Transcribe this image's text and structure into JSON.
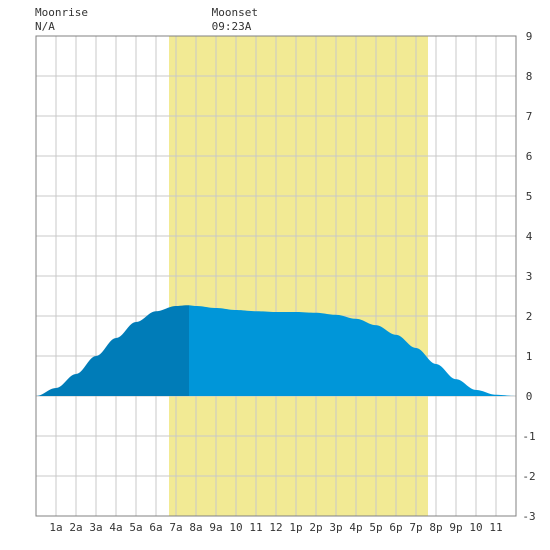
{
  "moonrise": {
    "label": "Moonrise",
    "value": "N/A"
  },
  "moonset": {
    "label": "Moonset",
    "value": "09:23A",
    "hour": 9.383
  },
  "chart_data": {
    "type": "area",
    "title": "",
    "xlabel": "",
    "ylabel": "",
    "xlim": [
      0,
      24
    ],
    "ylim": [
      -3,
      9
    ],
    "grid": true,
    "x_ticks": [
      {
        "x": 1,
        "label": "1a"
      },
      {
        "x": 2,
        "label": "2a"
      },
      {
        "x": 3,
        "label": "3a"
      },
      {
        "x": 4,
        "label": "4a"
      },
      {
        "x": 5,
        "label": "5a"
      },
      {
        "x": 6,
        "label": "6a"
      },
      {
        "x": 7,
        "label": "7a"
      },
      {
        "x": 8,
        "label": "8a"
      },
      {
        "x": 9,
        "label": "9a"
      },
      {
        "x": 10,
        "label": "10"
      },
      {
        "x": 11,
        "label": "11"
      },
      {
        "x": 12,
        "label": "12"
      },
      {
        "x": 13,
        "label": "1p"
      },
      {
        "x": 14,
        "label": "2p"
      },
      {
        "x": 15,
        "label": "3p"
      },
      {
        "x": 16,
        "label": "4p"
      },
      {
        "x": 17,
        "label": "5p"
      },
      {
        "x": 18,
        "label": "6p"
      },
      {
        "x": 19,
        "label": "7p"
      },
      {
        "x": 20,
        "label": "8p"
      },
      {
        "x": 21,
        "label": "9p"
      },
      {
        "x": 22,
        "label": "10"
      },
      {
        "x": 23,
        "label": "11"
      }
    ],
    "y_ticks": [
      {
        "y": 9,
        "label": "9"
      },
      {
        "y": 8,
        "label": "8"
      },
      {
        "y": 7,
        "label": "7"
      },
      {
        "y": 6,
        "label": "6"
      },
      {
        "y": 5,
        "label": "5"
      },
      {
        "y": 4,
        "label": "4"
      },
      {
        "y": 3,
        "label": "3"
      },
      {
        "y": 2,
        "label": "2"
      },
      {
        "y": 1,
        "label": "1"
      },
      {
        "y": 0,
        "label": "0"
      },
      {
        "y": -1,
        "label": "-1"
      },
      {
        "y": -2,
        "label": "-2"
      },
      {
        "y": -3,
        "label": "-3"
      }
    ],
    "daylight": {
      "start": 6.65,
      "end": 19.6
    },
    "moon_visible_until": 7.65,
    "series": [
      {
        "x": [
          0,
          1,
          2,
          3,
          4,
          5,
          6,
          7,
          7.6,
          8,
          9,
          10,
          11,
          12,
          13,
          14,
          15,
          16,
          17,
          18,
          19,
          20,
          21,
          22,
          23,
          24
        ],
        "values": [
          0.0,
          0.2,
          0.55,
          1.0,
          1.45,
          1.85,
          2.12,
          2.25,
          2.27,
          2.25,
          2.2,
          2.15,
          2.12,
          2.1,
          2.1,
          2.08,
          2.03,
          1.93,
          1.77,
          1.53,
          1.2,
          0.8,
          0.42,
          0.15,
          0.03,
          0.0
        ]
      }
    ],
    "colors": {
      "daylight": "#f2ea94",
      "tide": "#0096d9",
      "tide_moon": "#007cb8",
      "grid": "#c8c8c8",
      "axis": "#808080"
    }
  }
}
